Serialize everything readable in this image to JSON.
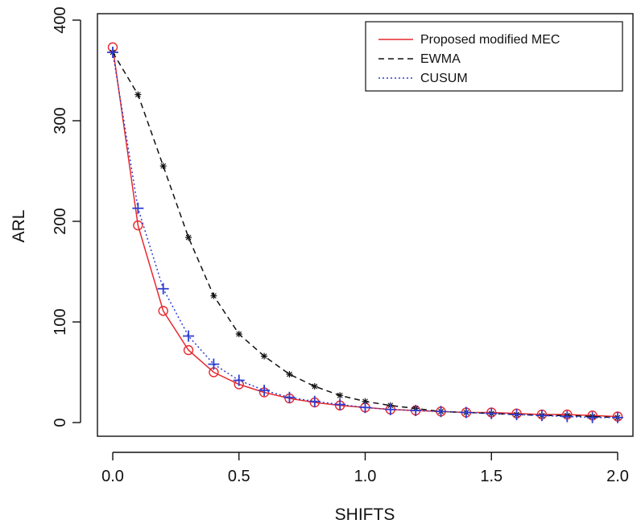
{
  "chart_data": {
    "type": "line",
    "xlabel": "SHIFTS",
    "ylabel": "ARL",
    "xlim": [
      0,
      2
    ],
    "ylim": [
      0,
      400
    ],
    "xticks": [
      "0.0",
      "0.5",
      "1.0",
      "1.5",
      "2.0"
    ],
    "yticks": [
      "0",
      "100",
      "200",
      "300",
      "400"
    ],
    "grid": false,
    "legend_position": "top-right",
    "x": [
      0.0,
      0.1,
      0.2,
      0.3,
      0.4,
      0.5,
      0.6,
      0.7,
      0.8,
      0.9,
      1.0,
      1.1,
      1.2,
      1.3,
      1.4,
      1.5,
      1.6,
      1.7,
      1.8,
      1.9,
      2.0
    ],
    "series": [
      {
        "name": "Proposed modified MEC",
        "color": "#e8292e",
        "line": "solid",
        "marker": "circle",
        "values": [
          373,
          196,
          111,
          72,
          50,
          38,
          30,
          24,
          20,
          17,
          15,
          13,
          12,
          11,
          10,
          10,
          9,
          8,
          8,
          7,
          6
        ]
      },
      {
        "name": "EWMA",
        "color": "#111111",
        "line": "dashed",
        "marker": "star",
        "values": [
          368,
          326,
          255,
          184,
          126,
          88,
          66,
          48,
          36,
          27,
          21,
          17,
          14,
          11,
          10,
          9,
          8,
          7,
          7,
          6,
          5
        ]
      },
      {
        "name": "CUSUM",
        "color": "#2d3dd1",
        "line": "dotted",
        "marker": "plus",
        "values": [
          368,
          213,
          133,
          86,
          58,
          42,
          32,
          25,
          21,
          18,
          15,
          13,
          12,
          11,
          10,
          9,
          8,
          7,
          6,
          5,
          5
        ]
      }
    ]
  }
}
